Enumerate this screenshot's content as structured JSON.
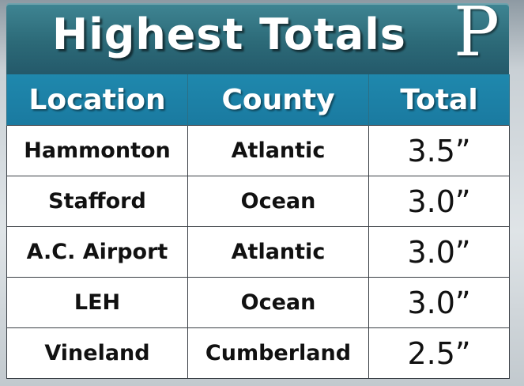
{
  "header": {
    "title": "Highest Totals",
    "logo_letter": "P"
  },
  "table": {
    "columns": [
      "Location",
      "County",
      "Total"
    ],
    "rows": [
      {
        "location": "Hammonton",
        "county": "Atlantic",
        "total": "3.5”"
      },
      {
        "location": "Stafford",
        "county": "Ocean",
        "total": "3.0”"
      },
      {
        "location": "A.C. Airport",
        "county": "Atlantic",
        "total": "3.0”"
      },
      {
        "location": "LEH",
        "county": "Ocean",
        "total": "3.0”"
      },
      {
        "location": "Vineland",
        "county": "Cumberland",
        "total": "2.5”"
      }
    ]
  },
  "colors": {
    "title_bar": "#2c6a78",
    "header_row": "#1f88ad",
    "cell_bg": "#ffffff"
  }
}
